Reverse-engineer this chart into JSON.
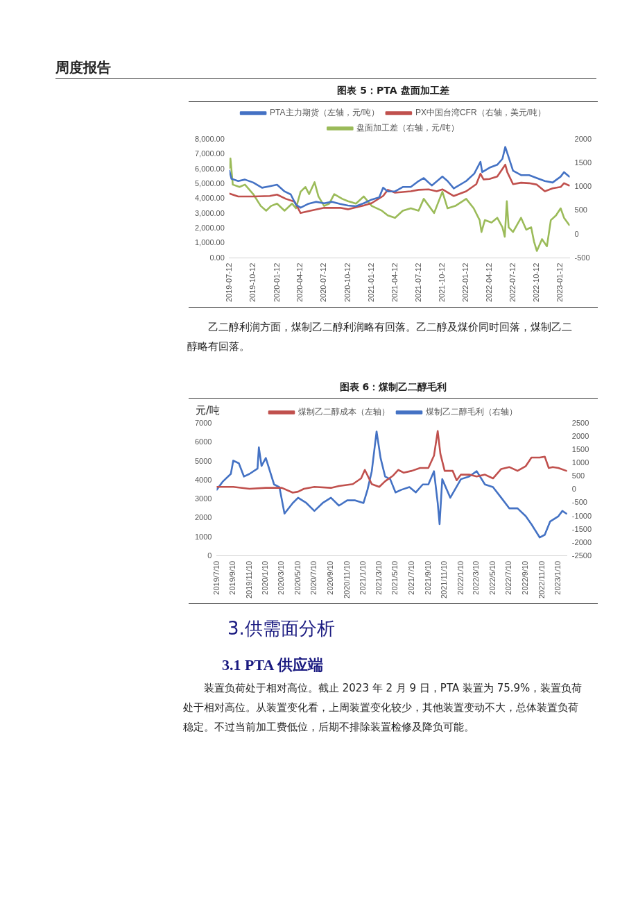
{
  "chart_data": [
    {
      "type": "line",
      "title": "图表 5：PTA 盘面加工差",
      "annotations": [
        "周度报告",
        "乙二醇利润方面，煤制乙二醇利润略有回落。乙二醇及煤价同时回落，煤制乙二醇略有回落。"
      ],
      "xlim": [
        "2019-07-12",
        "2023-02-16"
      ],
      "xticks": [
        "2019-07-12",
        "2019-10-12",
        "2020-01-12",
        "2020-04-12",
        "2020-07-12",
        "2020-10-12",
        "2021-01-12",
        "2021-04-12",
        "2021-07-12",
        "2021-10-12",
        "2022-01-12",
        "2022-04-12",
        "2022-07-12",
        "2022-10-12",
        "2023-01-12"
      ],
      "ylim": [
        0,
        8000
      ],
      "yticks": [
        {
          "value": 0,
          "label": "0.00"
        },
        {
          "value": 1000,
          "label": "1,000.00"
        },
        {
          "value": 2000,
          "label": "2,000.00"
        },
        {
          "value": 3000,
          "label": "3,000.00"
        },
        {
          "value": 4000,
          "label": "4,000.00"
        },
        {
          "value": 5000,
          "label": "5,000.00"
        },
        {
          "value": 6000,
          "label": "6,000.00"
        },
        {
          "value": 7000,
          "label": "7,000.00"
        },
        {
          "value": 8000,
          "label": "8,000.00"
        }
      ],
      "y2lim": [
        -500,
        2000
      ],
      "y2ticks": [
        -500,
        0,
        500,
        1000,
        1500,
        2000
      ],
      "grid": false,
      "legend": "top",
      "marker": "none",
      "line_style": "solid",
      "series": [
        {
          "name": "PTA主力期货（左轴，元/吨）",
          "color": "#4472c4",
          "x": [
            "2019-07-12",
            "2019-07-20",
            "2019-08-15",
            "2019-09-10",
            "2019-10-12",
            "2019-11-15",
            "2019-12-15",
            "2020-01-12",
            "2020-02-10",
            "2020-03-05",
            "2020-03-25",
            "2020-04-12",
            "2020-05-10",
            "2020-06-10",
            "2020-07-12",
            "2020-08-12",
            "2020-09-12",
            "2020-10-12",
            "2020-11-12",
            "2020-12-12",
            "2021-01-12",
            "2021-02-10",
            "2021-02-25",
            "2021-03-15",
            "2021-04-12",
            "2021-05-12",
            "2021-06-12",
            "2021-07-12",
            "2021-08-01",
            "2021-09-01",
            "2021-10-12",
            "2021-11-01",
            "2021-11-25",
            "2022-01-12",
            "2022-02-12",
            "2022-03-08",
            "2022-03-15",
            "2022-04-12",
            "2022-05-12",
            "2022-06-01",
            "2022-06-12",
            "2022-07-12",
            "2022-08-12",
            "2022-09-12",
            "2022-10-12",
            "2022-11-12",
            "2022-12-12",
            "2023-01-12",
            "2023-01-25",
            "2023-02-14"
          ],
          "values": [
            5900,
            5350,
            5200,
            5300,
            5100,
            4750,
            4850,
            4950,
            4500,
            4300,
            3600,
            3400,
            3650,
            3800,
            3700,
            3800,
            3650,
            3550,
            3500,
            3700,
            3950,
            4100,
            4750,
            4500,
            4500,
            4800,
            4800,
            5200,
            5400,
            4900,
            5500,
            5200,
            4700,
            5200,
            5700,
            6500,
            5800,
            6100,
            6300,
            6700,
            7500,
            5900,
            5600,
            5600,
            5400,
            5200,
            5100,
            5500,
            5800,
            5500
          ]
        },
        {
          "name": "PX中国台湾CFR（右轴，美元/吨）",
          "color": "#c0504d",
          "axis": "y2",
          "x": [
            "2019-07-12",
            "2019-08-15",
            "2019-10-12",
            "2019-12-15",
            "2020-01-12",
            "2020-02-15",
            "2020-03-20",
            "2020-04-12",
            "2020-05-20",
            "2020-07-12",
            "2020-09-12",
            "2020-10-12",
            "2020-12-12",
            "2021-01-12",
            "2021-02-25",
            "2021-03-15",
            "2021-04-12",
            "2021-06-12",
            "2021-07-12",
            "2021-08-20",
            "2021-09-20",
            "2021-10-12",
            "2021-11-25",
            "2022-01-12",
            "2022-02-20",
            "2022-03-08",
            "2022-03-20",
            "2022-04-12",
            "2022-05-12",
            "2022-06-12",
            "2022-06-20",
            "2022-07-12",
            "2022-08-12",
            "2022-09-12",
            "2022-10-12",
            "2022-11-12",
            "2022-12-12",
            "2023-01-12",
            "2023-01-25",
            "2023-02-14"
          ],
          "values": [
            860,
            800,
            800,
            810,
            840,
            750,
            690,
            450,
            500,
            560,
            560,
            530,
            610,
            660,
            810,
            940,
            880,
            910,
            940,
            950,
            910,
            950,
            810,
            910,
            1060,
            1280,
            1160,
            1170,
            1220,
            1470,
            1310,
            1060,
            1090,
            1080,
            1050,
            910,
            970,
            1000,
            1080,
            1030
          ]
        },
        {
          "name": "盘面加工差（右轴，元/吨）",
          "color": "#9bbb59",
          "axis": "y2",
          "x": [
            "2019-07-12",
            "2019-07-16",
            "2019-07-25",
            "2019-08-20",
            "2019-09-10",
            "2019-10-12",
            "2019-11-10",
            "2019-12-01",
            "2019-12-20",
            "2020-01-12",
            "2020-02-10",
            "2020-03-10",
            "2020-03-25",
            "2020-04-12",
            "2020-05-01",
            "2020-05-15",
            "2020-06-05",
            "2020-06-20",
            "2020-07-12",
            "2020-08-01",
            "2020-08-20",
            "2020-09-20",
            "2020-10-12",
            "2020-11-12",
            "2020-12-12",
            "2021-01-12",
            "2021-02-20",
            "2021-03-15",
            "2021-04-12",
            "2021-05-12",
            "2021-06-12",
            "2021-07-12",
            "2021-08-01",
            "2021-09-10",
            "2021-10-12",
            "2021-11-01",
            "2021-12-01",
            "2022-01-12",
            "2022-02-10",
            "2022-03-05",
            "2022-03-12",
            "2022-03-25",
            "2022-04-20",
            "2022-05-12",
            "2022-06-01",
            "2022-06-10",
            "2022-06-18",
            "2022-06-25",
            "2022-07-12",
            "2022-08-12",
            "2022-09-01",
            "2022-09-20",
            "2022-10-01",
            "2022-10-12",
            "2022-11-01",
            "2022-11-20",
            "2022-12-05",
            "2022-12-25",
            "2023-01-12",
            "2023-01-25",
            "2023-02-14"
          ],
          "values": [
            1400,
            1600,
            1050,
            1000,
            1050,
            850,
            600,
            500,
            600,
            650,
            500,
            650,
            550,
            900,
            1000,
            850,
            1100,
            800,
            600,
            650,
            850,
            750,
            700,
            650,
            800,
            600,
            500,
            400,
            350,
            500,
            550,
            500,
            750,
            450,
            900,
            550,
            600,
            750,
            550,
            300,
            50,
            300,
            250,
            350,
            150,
            -50,
            700,
            150,
            50,
            350,
            100,
            150,
            -150,
            -350,
            -100,
            -250,
            300,
            400,
            550,
            350,
            200
          ]
        }
      ]
    },
    {
      "type": "line",
      "title": "图表 6：煤制乙二醇毛利",
      "ylabel": "元/吨",
      "annotations": [
        "3.供需面分析",
        "3.1 PTA 供应端",
        "装置负荷处于相对高位。截止 2023 年 2 月 9 日，PTA 装置为 75.9%，装置负荷处于相对高位。从装置变化看，上周装置变化较少，其他装置变动不大，总体装置负荷稳定。不过当前加工费低位，后期不排除装置检修及降负可能。"
      ],
      "xlim": [
        "2019-07-10",
        "2023-02-12"
      ],
      "xticks": [
        {
          "value": "2019-07-10",
          "label": "2019/7/10"
        },
        {
          "value": "2019-09-10",
          "label": "2019/9/10"
        },
        {
          "value": "2019-11-10",
          "label": "2019/11/10"
        },
        {
          "value": "2020-01-10",
          "label": "2020/1/10"
        },
        {
          "value": "2020-03-10",
          "label": "2020/3/10"
        },
        {
          "value": "2020-05-10",
          "label": "2020/5/10"
        },
        {
          "value": "2020-07-10",
          "label": "2020/7/10"
        },
        {
          "value": "2020-09-10",
          "label": "2020/9/10"
        },
        {
          "value": "2020-11-10",
          "label": "2020/11/10"
        },
        {
          "value": "2021-01-10",
          "label": "2021/1/10"
        },
        {
          "value": "2021-03-10",
          "label": "2021/3/10"
        },
        {
          "value": "2021-05-10",
          "label": "2021/5/10"
        },
        {
          "value": "2021-07-10",
          "label": "2021/7/10"
        },
        {
          "value": "2021-09-10",
          "label": "2021/9/10"
        },
        {
          "value": "2021-11-10",
          "label": "2021/11/10"
        },
        {
          "value": "2022-01-10",
          "label": "2022/1/10"
        },
        {
          "value": "2022-03-10",
          "label": "2022/3/10"
        },
        {
          "value": "2022-05-10",
          "label": "2022/5/10"
        },
        {
          "value": "2022-07-10",
          "label": "2022/7/10"
        },
        {
          "value": "2022-09-10",
          "label": "2022/9/10"
        },
        {
          "value": "2022-11-10",
          "label": "2022/11/10"
        },
        {
          "value": "2023-01-10",
          "label": "2023/1/10"
        }
      ],
      "ylim": [
        0,
        7000
      ],
      "yticks": [
        0,
        1000,
        2000,
        3000,
        4000,
        5000,
        6000,
        7000
      ],
      "y2lim": [
        -2500,
        2500
      ],
      "y2ticks": [
        -2500,
        -2000,
        -1500,
        -1000,
        -500,
        0,
        500,
        1000,
        1500,
        2000,
        2500
      ],
      "grid": false,
      "legend": "top",
      "marker": "none",
      "line_style": "solid",
      "series": [
        {
          "name": "煤制乙二醇成本（左轴）",
          "color": "#c0504d",
          "x": [
            "2019-07-10",
            "2019-09-10",
            "2019-11-10",
            "2020-01-10",
            "2020-03-10",
            "2020-04-20",
            "2020-05-10",
            "2020-06-01",
            "2020-07-10",
            "2020-09-10",
            "2020-10-10",
            "2020-12-01",
            "2021-01-01",
            "2021-01-15",
            "2021-02-10",
            "2021-03-10",
            "2021-04-01",
            "2021-05-01",
            "2021-05-20",
            "2021-06-10",
            "2021-07-10",
            "2021-08-10",
            "2021-09-10",
            "2021-10-01",
            "2021-10-15",
            "2021-10-25",
            "2021-11-10",
            "2021-12-10",
            "2021-12-25",
            "2022-01-10",
            "2022-02-10",
            "2022-03-10",
            "2022-04-10",
            "2022-05-10",
            "2022-06-10",
            "2022-07-10",
            "2022-08-10",
            "2022-09-10",
            "2022-10-01",
            "2022-11-01",
            "2022-11-20",
            "2022-12-05",
            "2022-12-20",
            "2023-01-10",
            "2023-02-09"
          ],
          "values": [
            3650,
            3650,
            3550,
            3600,
            3600,
            3350,
            3400,
            3550,
            3650,
            3600,
            3700,
            3800,
            4100,
            4550,
            3800,
            3650,
            3950,
            4250,
            4550,
            4400,
            4500,
            4650,
            4650,
            5300,
            6600,
            5400,
            4500,
            4500,
            4000,
            4300,
            4300,
            4200,
            4300,
            4100,
            4600,
            4700,
            4500,
            4750,
            5200,
            5200,
            5250,
            4650,
            4700,
            4650,
            4500
          ]
        },
        {
          "name": "煤制乙二醇毛利（右轴）",
          "color": "#4472c4",
          "axis": "y2",
          "x": [
            "2019-07-10",
            "2019-08-01",
            "2019-09-01",
            "2019-09-10",
            "2019-10-01",
            "2019-10-20",
            "2019-11-10",
            "2019-12-10",
            "2019-12-15",
            "2019-12-25",
            "2020-01-10",
            "2020-02-10",
            "2020-03-01",
            "2020-03-20",
            "2020-04-20",
            "2020-05-10",
            "2020-06-10",
            "2020-07-10",
            "2020-08-10",
            "2020-09-10",
            "2020-10-10",
            "2020-11-10",
            "2020-12-10",
            "2021-01-10",
            "2021-01-25",
            "2021-02-10",
            "2021-02-28",
            "2021-03-15",
            "2021-04-01",
            "2021-04-20",
            "2021-05-10",
            "2021-06-01",
            "2021-07-01",
            "2021-07-25",
            "2021-08-20",
            "2021-09-10",
            "2021-10-01",
            "2021-10-15",
            "2021-10-22",
            "2021-11-01",
            "2021-12-01",
            "2022-01-10",
            "2022-02-10",
            "2022-03-10",
            "2022-04-10",
            "2022-05-10",
            "2022-06-10",
            "2022-07-10",
            "2022-08-10",
            "2022-09-10",
            "2022-10-01",
            "2022-11-01",
            "2022-11-20",
            "2022-12-10",
            "2023-01-10",
            "2023-01-25",
            "2023-02-09"
          ],
          "values": [
            0,
            300,
            600,
            1100,
            1000,
            500,
            600,
            800,
            1600,
            900,
            1200,
            200,
            100,
            -900,
            -500,
            -300,
            -500,
            -800,
            -500,
            -300,
            -600,
            -400,
            -400,
            -500,
            0,
            700,
            2200,
            1200,
            500,
            400,
            -100,
            0,
            100,
            -100,
            200,
            200,
            700,
            -500,
            -1300,
            400,
            -300,
            400,
            500,
            700,
            200,
            100,
            -300,
            -700,
            -700,
            -1000,
            -1300,
            -1800,
            -1700,
            -1200,
            -1000,
            -800,
            -900
          ]
        }
      ]
    }
  ]
}
